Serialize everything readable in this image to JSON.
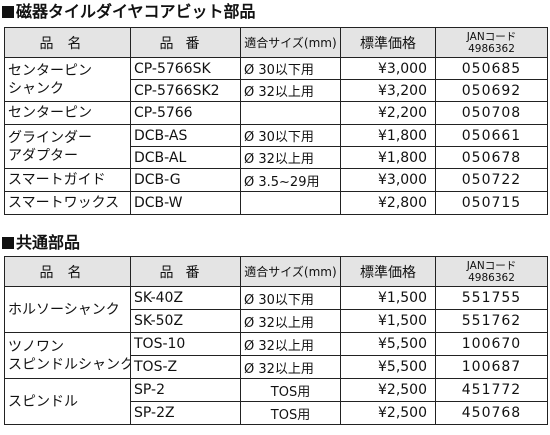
{
  "section1": {
    "title": "磁器タイルダイヤコアビット部品",
    "headers": {
      "name": "品名",
      "code": "品番",
      "fit": "適合サイズ(mm)",
      "price": "標準価格",
      "jan1": "JANコード",
      "jan2": "4986362"
    },
    "groups": [
      {
        "name": [
          "センターピン",
          "シャンク"
        ],
        "rows": [
          {
            "code": "CP-5766SK",
            "fit": "Ø 30以下用",
            "price": "¥3,000",
            "jan": "050685"
          },
          {
            "code": "CP-5766SK2",
            "fit": "Ø 32以上用",
            "price": "¥3,200",
            "jan": "050692"
          }
        ]
      },
      {
        "name": [
          "センターピン"
        ],
        "rows": [
          {
            "code": "CP-5766",
            "fit": "",
            "price": "¥2,200",
            "jan": "050708"
          }
        ]
      },
      {
        "name": [
          "グラインダー",
          "アダプター"
        ],
        "rows": [
          {
            "code": "DCB-AS",
            "fit": "Ø 30以下用",
            "price": "¥1,800",
            "jan": "050661"
          },
          {
            "code": "DCB-AL",
            "fit": "Ø 32以上用",
            "price": "¥1,800",
            "jan": "050678"
          }
        ]
      },
      {
        "name": [
          "スマートガイド"
        ],
        "rows": [
          {
            "code": "DCB-G",
            "fit": "Ø 3.5~29用",
            "price": "¥3,000",
            "jan": "050722"
          }
        ]
      },
      {
        "name": [
          "スマートワックス"
        ],
        "rows": [
          {
            "code": "DCB-W",
            "fit": "",
            "price": "¥2,800",
            "jan": "050715"
          }
        ]
      }
    ]
  },
  "section2": {
    "title": "共通部品",
    "headers": {
      "name": "品名",
      "code": "品番",
      "fit": "適合サイズ(mm)",
      "price": "標準価格",
      "jan1": "JANコード",
      "jan2": "4986362"
    },
    "groups": [
      {
        "name": [
          "ホルソーシャンク"
        ],
        "rows": [
          {
            "code": "SK-40Z",
            "fit": "Ø 30以下用",
            "price": "¥1,500",
            "jan": "551755"
          },
          {
            "code": "SK-50Z",
            "fit": "Ø 32以上用",
            "price": "¥1,500",
            "jan": "551762"
          }
        ]
      },
      {
        "name": [
          "ツノワン",
          "スピンドルシャンク"
        ],
        "rows": [
          {
            "code": "TOS-10",
            "fit": "Ø 32以上用",
            "price": "¥5,500",
            "jan": "100670"
          },
          {
            "code": "TOS-Z",
            "fit": "Ø 32以上用",
            "price": "¥5,500",
            "jan": "100687"
          }
        ]
      },
      {
        "name": [
          "スピンドル"
        ],
        "rows": [
          {
            "code": "SP-2",
            "fit": "TOS用",
            "price": "¥2,500",
            "jan": "451772"
          },
          {
            "code": "SP-2Z",
            "fit": "TOS用",
            "price": "¥2,500",
            "jan": "450768"
          }
        ]
      }
    ]
  }
}
